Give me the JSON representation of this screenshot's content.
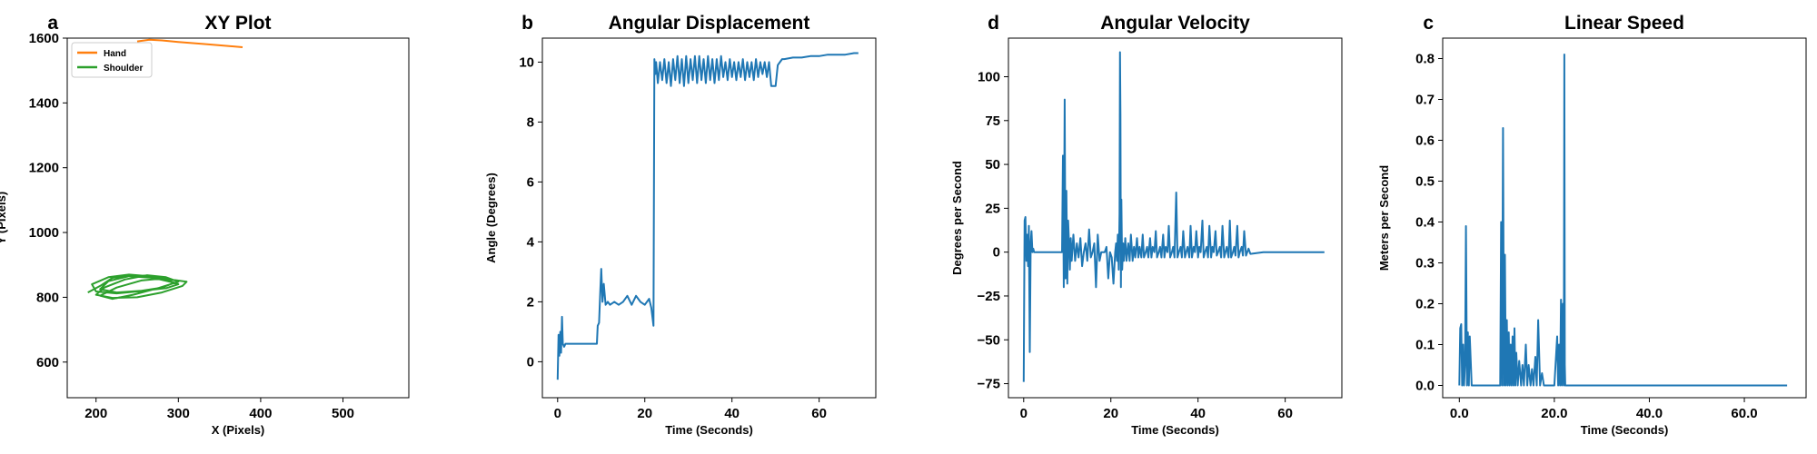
{
  "colors": {
    "blue": "#1f77b4",
    "orange": "#ff7f0e",
    "green": "#2ca02c",
    "axis": "#000000"
  },
  "chart_data": [
    {
      "letter": "a",
      "type": "line",
      "title": "XY Plot",
      "xlabel": "X (Pixels)",
      "ylabel": "Y (Pixels)",
      "xlim": [
        165,
        580
      ],
      "ylim": [
        490,
        1600
      ],
      "xticks": [
        200,
        300,
        400,
        500
      ],
      "yticks": [
        600,
        800,
        1000,
        1200,
        1400,
        1600
      ],
      "grid": false,
      "legend": {
        "placement": "top-left"
      },
      "series": [
        {
          "name": "Hand",
          "color": "#ff7f0e",
          "x": [
            250,
            265,
            280,
            300,
            330,
            360,
            378
          ],
          "y": [
            1590,
            1595,
            1593,
            1588,
            1582,
            1576,
            1572
          ]
        },
        {
          "name": "Shoulder",
          "color": "#2ca02c",
          "x": [
            190,
            205,
            220,
            245,
            270,
            290,
            300,
            285,
            255,
            225,
            205,
            215,
            240,
            270,
            295,
            280,
            250,
            225,
            200,
            195,
            215,
            240,
            265,
            290,
            310,
            305,
            280,
            250,
            220,
            200,
            210,
            235,
            262,
            285,
            300,
            275,
            245,
            220,
            205,
            225,
            255,
            280
          ],
          "y": [
            815,
            835,
            860,
            868,
            862,
            850,
            840,
            828,
            820,
            815,
            825,
            850,
            865,
            860,
            845,
            830,
            818,
            812,
            818,
            840,
            862,
            870,
            865,
            855,
            848,
            835,
            815,
            800,
            798,
            808,
            830,
            855,
            868,
            862,
            848,
            828,
            808,
            795,
            805,
            830,
            852,
            858
          ]
        }
      ]
    },
    {
      "letter": "b",
      "type": "line",
      "title": "Angular Displacement",
      "xlabel": "Time (Seconds)",
      "ylabel": "Angle (Degrees)",
      "xlim": [
        -3.5,
        73
      ],
      "ylim": [
        -1.2,
        10.8
      ],
      "xticks": [
        0,
        20,
        40,
        60
      ],
      "yticks": [
        0,
        2,
        4,
        6,
        8,
        10
      ],
      "grid": false,
      "series": [
        {
          "color": "#1f77b4",
          "x": [
            0,
            0.2,
            0.4,
            0.6,
            0.8,
            1.0,
            1.2,
            1.5,
            1.8,
            2.0,
            3.0,
            6.0,
            9.0,
            9.2,
            9.5,
            9.8,
            10.0,
            10.3,
            10.6,
            11.0,
            11.5,
            12.0,
            13.0,
            14.0,
            15.0,
            16.0,
            17.0,
            18.0,
            19.0,
            20.0,
            21.0,
            21.5,
            22.0,
            22.2,
            22.4,
            22.6,
            23.0,
            23.5,
            24.0,
            24.5,
            25.0,
            25.5,
            26.0,
            26.5,
            27.0,
            27.5,
            28.0,
            28.5,
            29.0,
            29.5,
            30.0,
            30.5,
            31.0,
            31.5,
            32.0,
            32.5,
            33.0,
            33.5,
            34.0,
            34.5,
            35.0,
            35.5,
            36.0,
            36.5,
            37.0,
            37.5,
            38.0,
            38.5,
            39.0,
            39.5,
            40.0,
            40.5,
            41.0,
            41.5,
            42.0,
            42.5,
            43.0,
            43.5,
            44.0,
            44.5,
            45.0,
            45.5,
            46.0,
            46.5,
            47.0,
            47.5,
            48.0,
            48.5,
            49.0,
            49.5,
            50.0,
            50.5,
            51.0,
            51.5,
            52.0,
            54.0,
            56.0,
            58.0,
            60.0,
            62.0,
            64.0,
            66.0,
            68.0,
            69.0
          ],
          "y": [
            -0.6,
            0.9,
            0.2,
            1.0,
            0.3,
            1.5,
            0.6,
            0.5,
            0.6,
            0.6,
            0.6,
            0.6,
            0.6,
            1.2,
            1.3,
            2.4,
            3.1,
            2.0,
            2.6,
            1.9,
            2.0,
            1.9,
            2.0,
            1.9,
            2.0,
            2.2,
            1.9,
            2.2,
            2.0,
            1.9,
            2.1,
            1.8,
            1.2,
            10.1,
            9.6,
            10.0,
            9.3,
            10.0,
            9.4,
            10.1,
            9.3,
            10.0,
            9.2,
            10.1,
            9.4,
            10.2,
            9.3,
            10.1,
            9.2,
            10.2,
            9.3,
            10.1,
            9.4,
            10.2,
            9.3,
            10.2,
            9.4,
            10.1,
            9.3,
            10.2,
            9.4,
            10.1,
            9.3,
            10.1,
            9.4,
            10.2,
            9.5,
            10.0,
            9.4,
            10.1,
            9.5,
            10.0,
            9.4,
            10.0,
            9.5,
            10.1,
            9.4,
            10.0,
            9.5,
            10.0,
            9.4,
            10.1,
            9.5,
            10.0,
            9.6,
            10.0,
            9.5,
            10.0,
            9.2,
            9.2,
            9.2,
            9.9,
            10.0,
            10.1,
            10.1,
            10.15,
            10.15,
            10.2,
            10.2,
            10.25,
            10.25,
            10.25,
            10.3,
            10.3
          ]
        }
      ]
    },
    {
      "letter": "d",
      "type": "line",
      "title": "Angular Velocity",
      "xlabel": "Time (Seconds)",
      "ylabel": "Degrees per Second",
      "xlim": [
        -3.5,
        73
      ],
      "ylim": [
        -83,
        122
      ],
      "xticks": [
        0,
        20,
        40,
        60
      ],
      "yticks": [
        -75,
        -50,
        -25,
        0,
        25,
        50,
        75,
        100
      ],
      "grid": false,
      "series": [
        {
          "color": "#1f77b4",
          "x": [
            0,
            0.2,
            0.4,
            0.6,
            0.8,
            1.0,
            1.2,
            1.4,
            1.6,
            1.8,
            2.0,
            2.2,
            2.4,
            2.6,
            3.0,
            5.0,
            7.0,
            8.8,
            9.0,
            9.2,
            9.4,
            9.6,
            9.8,
            10.0,
            10.2,
            10.4,
            10.6,
            10.8,
            11.0,
            11.4,
            11.8,
            12.2,
            12.6,
            13.0,
            13.4,
            13.8,
            14.2,
            14.6,
            15.0,
            15.4,
            15.8,
            16.2,
            16.6,
            17.0,
            17.4,
            17.8,
            18.2,
            18.6,
            19.0,
            19.4,
            19.8,
            20.2,
            20.6,
            21.0,
            21.2,
            21.4,
            21.6,
            21.8,
            22.0,
            22.1,
            22.2,
            22.3,
            22.4,
            22.6,
            22.8,
            23.0,
            23.3,
            23.6,
            24.0,
            24.3,
            24.6,
            25.0,
            25.3,
            25.6,
            26.0,
            26.3,
            26.6,
            27.0,
            27.3,
            27.6,
            28.0,
            28.3,
            28.6,
            29.0,
            29.3,
            29.6,
            30.0,
            30.3,
            30.6,
            31.0,
            31.3,
            31.6,
            32.0,
            32.3,
            32.6,
            33.0,
            33.3,
            33.6,
            34.0,
            34.3,
            34.6,
            35.0,
            35.3,
            35.6,
            36.0,
            36.3,
            36.6,
            37.0,
            37.3,
            37.6,
            38.0,
            38.3,
            38.6,
            39.0,
            39.3,
            39.6,
            40.0,
            40.3,
            40.6,
            41.0,
            41.3,
            41.6,
            42.0,
            42.3,
            42.6,
            43.0,
            43.3,
            43.6,
            44.0,
            44.3,
            44.6,
            45.0,
            45.3,
            45.6,
            46.0,
            46.3,
            46.6,
            47.0,
            47.3,
            47.6,
            48.0,
            48.3,
            48.6,
            49.0,
            49.3,
            49.6,
            50.0,
            50.3,
            50.6,
            51.0,
            51.3,
            51.6,
            52.0,
            55.0,
            58.0,
            61.0,
            64.0,
            67.0,
            69.0
          ],
          "y": [
            -74,
            18,
            20,
            -5,
            10,
            -8,
            15,
            -57,
            5,
            12,
            0,
            2,
            0,
            0,
            0,
            0,
            0,
            0,
            55,
            -20,
            87,
            -15,
            35,
            -18,
            18,
            5,
            -10,
            8,
            -5,
            10,
            -5,
            5,
            -3,
            8,
            -8,
            0,
            5,
            -5,
            13,
            -3,
            0,
            5,
            -20,
            10,
            -5,
            0,
            0,
            0,
            3,
            -15,
            0,
            -3,
            -18,
            0,
            5,
            -5,
            10,
            -10,
            22,
            114,
            78,
            -20,
            30,
            -10,
            5,
            -5,
            8,
            -5,
            5,
            -5,
            10,
            -5,
            3,
            -3,
            8,
            -3,
            3,
            -3,
            10,
            -3,
            0,
            3,
            -3,
            8,
            -3,
            3,
            0,
            12,
            -3,
            0,
            3,
            -3,
            10,
            -3,
            3,
            0,
            15,
            -3,
            0,
            3,
            -3,
            34,
            -3,
            0,
            3,
            -3,
            12,
            -3,
            0,
            3,
            -3,
            15,
            -3,
            3,
            0,
            12,
            -3,
            3,
            0,
            18,
            -3,
            0,
            3,
            -3,
            15,
            -3,
            3,
            0,
            12,
            -2,
            0,
            3,
            -3,
            15,
            -3,
            0,
            3,
            -3,
            18,
            -3,
            0,
            3,
            -2,
            15,
            -3,
            0,
            3,
            -2,
            12,
            -2,
            0,
            2,
            -1,
            0,
            0,
            0,
            0,
            0,
            0
          ]
        }
      ]
    },
    {
      "letter": "c",
      "type": "line",
      "title": "Linear Speed",
      "xlabel": "Time (Seconds)",
      "ylabel": "Meters per Second",
      "xlim": [
        -3.5,
        73
      ],
      "ylim": [
        -0.03,
        0.85
      ],
      "xticks": [
        0,
        20,
        40,
        60
      ],
      "yticks": [
        0.0,
        0.1,
        0.2,
        0.3,
        0.4,
        0.5,
        0.6,
        0.7,
        0.8
      ],
      "grid": false,
      "series": [
        {
          "color": "#1f77b4",
          "x": [
            0,
            0.2,
            0.4,
            0.6,
            0.8,
            1.0,
            1.2,
            1.4,
            1.6,
            1.8,
            2.0,
            2.2,
            2.6,
            3.0,
            5.0,
            8.0,
            8.6,
            8.8,
            9.0,
            9.2,
            9.4,
            9.6,
            9.8,
            10.0,
            10.2,
            10.4,
            10.6,
            10.8,
            11.0,
            11.2,
            11.4,
            11.6,
            11.8,
            12.0,
            12.3,
            12.6,
            13.0,
            13.3,
            13.6,
            14.0,
            14.3,
            14.6,
            15.0,
            15.3,
            15.6,
            16.0,
            16.3,
            16.6,
            17.0,
            17.4,
            17.8,
            18.2,
            18.6,
            19.0,
            20.0,
            20.6,
            20.8,
            21.0,
            21.2,
            21.4,
            21.6,
            21.8,
            22.0,
            22.1,
            22.2,
            22.3,
            22.5,
            23.0,
            25.0,
            30.0,
            40.0,
            50.0,
            60.0,
            69.0
          ],
          "y": [
            0,
            0.14,
            0.15,
            0.0,
            0.1,
            0.0,
            0.05,
            0.39,
            0.0,
            0.13,
            0.0,
            0.12,
            0.0,
            0.0,
            0.0,
            0.0,
            0.0,
            0.4,
            0.0,
            0.63,
            0.0,
            0.32,
            0.0,
            0.16,
            0.0,
            0.13,
            0.0,
            0.1,
            0.0,
            0.12,
            0.0,
            0.14,
            0.0,
            0.08,
            0.0,
            0.06,
            0.0,
            0.05,
            0.0,
            0.1,
            0.0,
            0.05,
            0.0,
            0.04,
            0.0,
            0.07,
            0.0,
            0.16,
            0.0,
            0.03,
            0.0,
            0.0,
            0.0,
            0.0,
            0.0,
            0.12,
            0.0,
            0.1,
            0.0,
            0.21,
            0.0,
            0.2,
            0.0,
            0.81,
            0.05,
            0.0,
            0.0,
            0.0,
            0.0,
            0.0,
            0.0,
            0.0,
            0.0,
            0.0
          ]
        }
      ]
    }
  ]
}
